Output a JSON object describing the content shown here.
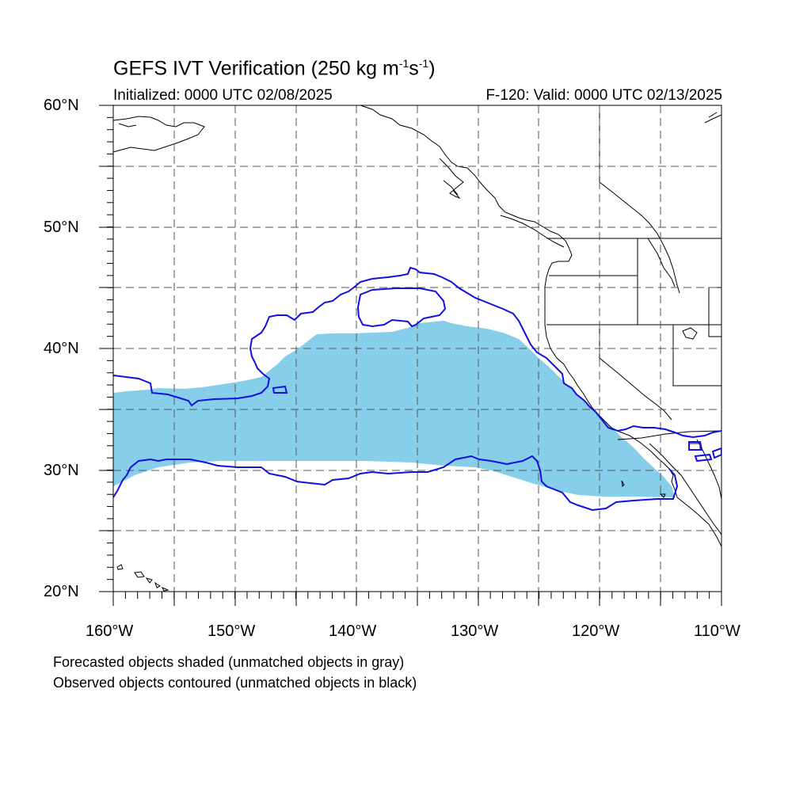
{
  "header": {
    "title_main": "GEFS IVT Verification (250 kg m",
    "title_exp1": "-1",
    "title_mid": "s",
    "title_exp2": "-1",
    "title_end": ")",
    "initialized": "Initialized: 0000 UTC 02/08/2025",
    "valid": "F-120: Valid: 0000 UTC 02/13/2025"
  },
  "axes": {
    "lat_labels": [
      "60°N",
      "50°N",
      "40°N",
      "30°N",
      "20°N"
    ],
    "lon_labels": [
      "160°W",
      "150°W",
      "140°W",
      "130°W",
      "120°W",
      "110°W"
    ],
    "lat_range": [
      20,
      60
    ],
    "lon_range": [
      -160,
      -110
    ]
  },
  "legend": {
    "line1": "Forecasted objects shaded (unmatched objects in gray)",
    "line2": "Observed objects contoured (unmatched objects in black)"
  },
  "colors": {
    "forecast_fill": "#87ceeb",
    "observed_contour": "#1010e0",
    "coastline": "#000000",
    "grid": "#555555"
  }
}
